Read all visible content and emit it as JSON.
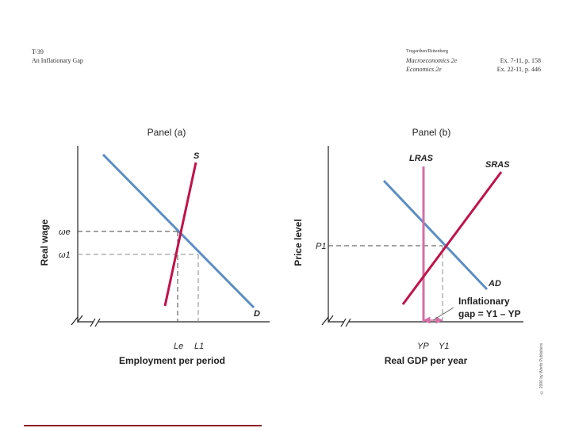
{
  "header": {
    "code": "T-39",
    "title": "An Inflationary Gap",
    "authors": "Tregarthen/Rittenberg",
    "ref1_book": "Macroeconomics 2e",
    "ref1_loc": "Ex. 7-11, p. 158",
    "ref2_book": "Economics 2e",
    "ref2_loc": "Ex. 22-11, p. 446"
  },
  "panel_a": {
    "title": "Panel (a)",
    "xlabel": "Employment per period",
    "ylabel": "Real wage",
    "supply_label": "S",
    "demand_label": "D",
    "wage_e_label": "ωe",
    "wage_1_label": "ω1",
    "emp_e_label": "Le",
    "emp_1_label": "L1"
  },
  "panel_b": {
    "title": "Panel (b)",
    "xlabel": "Real GDP per year",
    "ylabel": "Price level",
    "lras_label": "LRAS",
    "sras_label": "SRAS",
    "ad_label": "AD",
    "price_label": "P1",
    "potential_label": "YP",
    "output_label": "Y1",
    "gap_line1": "Inflationary",
    "gap_line2": "gap = Y1 – YP"
  },
  "copyright": "© 2000 by Worth Publishers",
  "colors": {
    "demand": "#5b8ec4",
    "supply": "#c0134a",
    "lras": "#d46fa6",
    "axis": "#222222",
    "guide": "#444444"
  }
}
